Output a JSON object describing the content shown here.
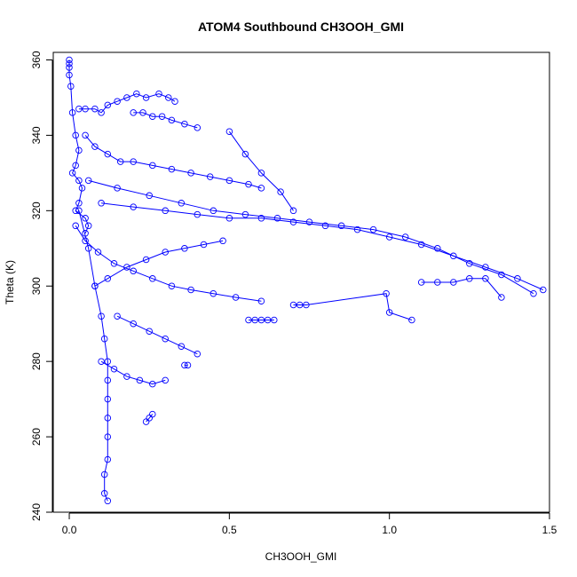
{
  "chart_data": {
    "type": "scatter",
    "title": "ATOM4 Southbound CH3OOH_GMI",
    "xlabel": "CH3OOH_GMI",
    "ylabel": "Theta (K)",
    "xlim": [
      -0.05,
      1.5
    ],
    "ylim": [
      240,
      362
    ],
    "x_ticks": [
      0.0,
      0.5,
      1.0,
      1.5
    ],
    "x_tick_labels": [
      "0.0",
      "0.5",
      "1.0",
      "1.5"
    ],
    "y_ticks": [
      240,
      260,
      280,
      300,
      320,
      340,
      360
    ],
    "y_tick_labels": [
      "240",
      "260",
      "280",
      "300",
      "320",
      "340",
      "360"
    ],
    "grid": false,
    "legend": "none",
    "marker": "open-circle",
    "connected": true,
    "color": "#0000ff",
    "series": [
      {
        "x": [
          0.0,
          0.0,
          0.0,
          0.0,
          0.005,
          0.01,
          0.02,
          0.03,
          0.02,
          0.01,
          0.03,
          0.04,
          0.03,
          0.02,
          0.05,
          0.06,
          0.05
        ],
        "y": [
          360,
          359,
          358,
          356,
          353,
          346,
          340,
          336,
          332,
          330,
          328,
          326,
          322,
          320,
          318,
          316,
          314
        ]
      },
      {
        "x": [
          0.03,
          0.05,
          0.08,
          0.1,
          0.12,
          0.15,
          0.18,
          0.21,
          0.24,
          0.28,
          0.31,
          0.33
        ],
        "y": [
          347,
          347,
          347,
          346,
          348,
          349,
          350,
          351,
          350,
          351,
          350,
          349
        ]
      },
      {
        "x": [
          0.2,
          0.23,
          0.26,
          0.29,
          0.32,
          0.36,
          0.4
        ],
        "y": [
          346,
          346,
          345,
          345,
          344,
          343,
          342
        ]
      },
      {
        "x": [
          0.05,
          0.08,
          0.12,
          0.16,
          0.2,
          0.26,
          0.32,
          0.38,
          0.44,
          0.5,
          0.56,
          0.6
        ],
        "y": [
          340,
          337,
          335,
          333,
          333,
          332,
          331,
          330,
          329,
          328,
          327,
          326
        ]
      },
      {
        "x": [
          0.1,
          0.2,
          0.3,
          0.4,
          0.5,
          0.6,
          0.7,
          0.8,
          0.9,
          1.0,
          1.1,
          1.2,
          1.3,
          1.4,
          1.48
        ],
        "y": [
          322,
          321,
          320,
          319,
          318,
          318,
          317,
          316,
          315,
          313,
          311,
          308,
          305,
          302,
          299
        ]
      },
      {
        "x": [
          0.06,
          0.15,
          0.25,
          0.35,
          0.45,
          0.55,
          0.65,
          0.75,
          0.85,
          0.95,
          1.05,
          1.15,
          1.25,
          1.35,
          1.45
        ],
        "y": [
          328,
          326,
          324,
          322,
          320,
          319,
          318,
          317,
          316,
          315,
          313,
          310,
          306,
          303,
          298
        ]
      },
      {
        "x": [
          0.03,
          0.06,
          0.08,
          0.1,
          0.11,
          0.12,
          0.12,
          0.12,
          0.12,
          0.12,
          0.12,
          0.11,
          0.11,
          0.12
        ],
        "y": [
          320,
          310,
          300,
          292,
          286,
          280,
          275,
          270,
          265,
          260,
          254,
          250,
          245,
          243
        ]
      },
      {
        "x": [
          0.02,
          0.05,
          0.09,
          0.14,
          0.2,
          0.26,
          0.32,
          0.38,
          0.45,
          0.52,
          0.6
        ],
        "y": [
          316,
          312,
          309,
          306,
          304,
          302,
          300,
          299,
          298,
          297,
          296
        ]
      },
      {
        "x": [
          0.15,
          0.2,
          0.25,
          0.3,
          0.35,
          0.4
        ],
        "y": [
          292,
          290,
          288,
          286,
          284,
          282
        ]
      },
      {
        "x": [
          0.56,
          0.58,
          0.6,
          0.62,
          0.64
        ],
        "y": [
          291,
          291,
          291,
          291,
          291
        ]
      },
      {
        "x": [
          0.7,
          0.72,
          0.74,
          0.99,
          1.0,
          1.07
        ],
        "y": [
          295,
          295,
          295,
          298,
          293,
          291
        ]
      },
      {
        "x": [
          0.1,
          0.14,
          0.18,
          0.22,
          0.26,
          0.3
        ],
        "y": [
          280,
          278,
          276,
          275,
          274,
          275
        ]
      },
      {
        "x": [
          0.24,
          0.25,
          0.26
        ],
        "y": [
          264,
          265,
          266
        ]
      },
      {
        "x": [
          0.36,
          0.37
        ],
        "y": [
          279,
          279
        ]
      },
      {
        "x": [
          0.5,
          0.55,
          0.6,
          0.66,
          0.7
        ],
        "y": [
          341,
          335,
          330,
          325,
          320
        ]
      },
      {
        "x": [
          0.08,
          0.12,
          0.18,
          0.24,
          0.3,
          0.36,
          0.42,
          0.48
        ],
        "y": [
          300,
          302,
          305,
          307,
          309,
          310,
          311,
          312
        ]
      },
      {
        "x": [
          1.1,
          1.15,
          1.2,
          1.25,
          1.3,
          1.35
        ],
        "y": [
          301,
          301,
          301,
          302,
          302,
          297
        ]
      }
    ]
  }
}
